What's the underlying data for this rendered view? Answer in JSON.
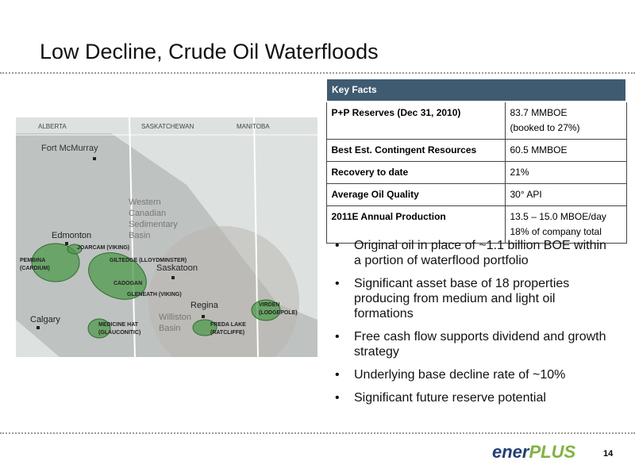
{
  "slide": {
    "title": "Low Decline, Crude Oil Waterfloods",
    "table": {
      "header": "Key Facts",
      "rows": [
        [
          "P+P Reserves (Dec 31, 2010)",
          [
            "83.7 MMBOE",
            "(booked to 27%)"
          ]
        ],
        [
          "Best Est. Contingent Resources",
          [
            "60.5 MMBOE"
          ]
        ],
        [
          "Recovery to date",
          [
            "21%"
          ]
        ],
        [
          "Average Oil Quality",
          [
            "30° API"
          ]
        ],
        [
          "2011E Annual Production",
          [
            "13.5 – 15.0 MBOE/day",
            "18% of company total"
          ]
        ]
      ]
    },
    "bullets": [
      "Original oil in place of ~1.1 billion BOE within a portion of waterflood portfolio",
      "Significant asset base of 18 properties producing from medium and light oil formations",
      "Free cash flow supports dividend and growth strategy",
      "Underlying base decline rate of ~10%",
      "Significant future reserve potential"
    ],
    "map": {
      "labels": [
        [
          "ALBERTA"
        ],
        [
          "SASKATCHEWAN"
        ],
        [
          "MANITOBA"
        ],
        [
          "Fort McMurray"
        ],
        [
          "Western",
          "Canadian",
          "Sedimentary",
          "Basin"
        ],
        [
          "Edmonton"
        ],
        [
          "JOARCAM (VIKING)"
        ],
        [
          "PEMBINA",
          "(CARDIUM)"
        ],
        [
          "GILTEDGE (LLOYDMINSTER)"
        ],
        [
          "CADOGAN"
        ],
        [
          "Saskatoon"
        ],
        [
          "GLENEATH (VIKING)"
        ],
        [
          "Calgary"
        ],
        [
          "Regina"
        ],
        [
          "Williston",
          "Basin"
        ],
        [
          "VIRDEN",
          "(LODGEPOLE)"
        ],
        [
          "MEDICINE HAT",
          "(GLAUCONITIC)"
        ],
        [
          "FREDA LAKE",
          "(RATCLIFFE)"
        ]
      ]
    },
    "logo": {
      "part1": "ener",
      "part2": "PLUS"
    },
    "page_number": "14"
  }
}
